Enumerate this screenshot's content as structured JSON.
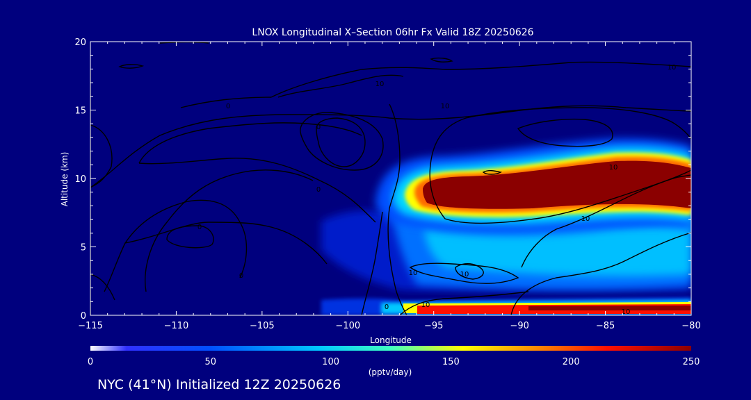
{
  "chart_data": {
    "type": "heatmap",
    "title": "LNOX Longitudinal X–Section 06hr  Fx Valid 18Z 20250626",
    "xlabel": "Longitude",
    "ylabel": "Altitude (km)",
    "xlim": [
      -115,
      -80
    ],
    "ylim": [
      0,
      20
    ],
    "x_ticks": [
      -115,
      -110,
      -105,
      -100,
      -95,
      -90,
      -85,
      -80
    ],
    "x_tick_labels": [
      "−115",
      "−110",
      "−105",
      "−100",
      "−95",
      "−90",
      "−85",
      "−80"
    ],
    "y_ticks": [
      0,
      5,
      10,
      15,
      20
    ],
    "y_tick_labels": [
      "0",
      "5",
      "10",
      "15",
      "20"
    ],
    "colorbar": {
      "min": 0,
      "max": 250,
      "ticks": [
        0,
        50,
        100,
        150,
        200,
        250
      ],
      "tick_labels": [
        "0",
        "50",
        "100",
        "150",
        "200",
        "250"
      ],
      "units": "(pptv/day)"
    },
    "lnox_field": [
      {
        "lon": -98,
        "alt": 1.0,
        "value": 40
      },
      {
        "lon": -96,
        "alt": 0.6,
        "value": 220
      },
      {
        "lon": -92,
        "alt": 0.5,
        "value": 250
      },
      {
        "lon": -85,
        "alt": 0.5,
        "value": 250
      },
      {
        "lon": -81,
        "alt": 0.5,
        "value": 250
      },
      {
        "lon": -101,
        "alt": 6.0,
        "value": 30
      },
      {
        "lon": -98,
        "alt": 8.0,
        "value": 60
      },
      {
        "lon": -97,
        "alt": 8.5,
        "value": 160
      },
      {
        "lon": -94,
        "alt": 8.8,
        "value": 250
      },
      {
        "lon": -90,
        "alt": 9.2,
        "value": 250
      },
      {
        "lon": -86,
        "alt": 9.8,
        "value": 250
      },
      {
        "lon": -82,
        "alt": 9.2,
        "value": 250
      },
      {
        "lon": -90,
        "alt": 5.0,
        "value": 90
      },
      {
        "lon": -84,
        "alt": 5.0,
        "value": 95
      },
      {
        "lon": -90,
        "alt": 3.0,
        "value": 55
      }
    ],
    "contour_labels": [
      "10",
      "10",
      "0",
      "0",
      "10",
      "0",
      "10",
      "10",
      "10",
      "0",
      "0",
      "0",
      "10",
      "10",
      "10"
    ],
    "colors": {
      "background": "#00007e",
      "contour": "#000000",
      "colorscale": [
        "#00007e",
        "#0000cc",
        "#0040ff",
        "#0090ff",
        "#00d8ff",
        "#60ffa0",
        "#ffff00",
        "#ff9000",
        "#ff2000",
        "#8b0000"
      ]
    }
  },
  "footer": {
    "text": "NYC (41°N) Initialized 12Z 20250626"
  }
}
